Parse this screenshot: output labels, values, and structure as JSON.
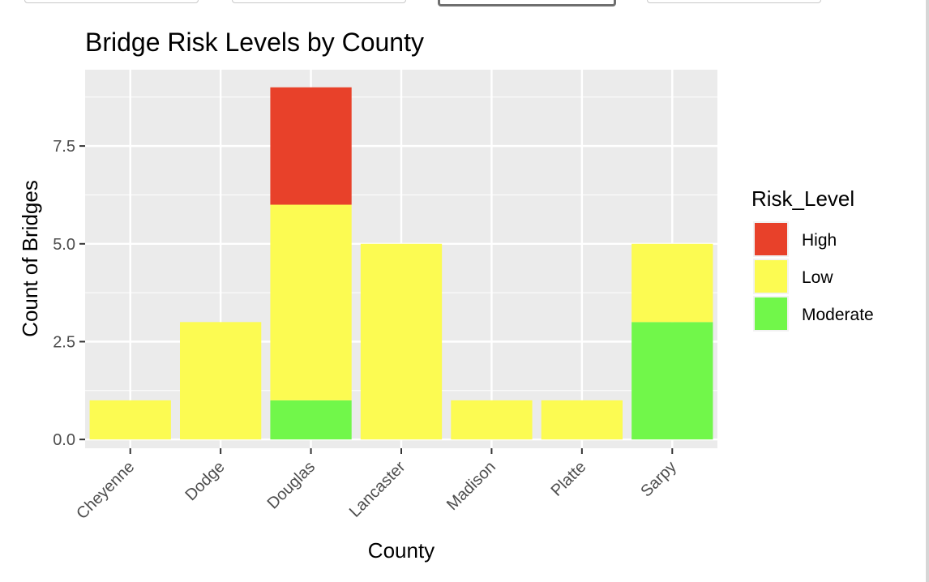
{
  "top_controls": [
    {
      "label": ""
    },
    {
      "label": ""
    },
    {
      "label": ""
    },
    {
      "label": ""
    }
  ],
  "chart_data": {
    "type": "bar",
    "stacked": true,
    "title": "Bridge Risk Levels by County",
    "xlabel": "County",
    "ylabel": "Count of Bridges",
    "categories": [
      "Cheyenne",
      "Dodge",
      "Douglas",
      "Lancaster",
      "Madison",
      "Platte",
      "Sarpy"
    ],
    "series": [
      {
        "name": "High",
        "color": "#E8412A",
        "values": [
          0,
          0,
          3,
          0,
          0,
          0,
          0
        ]
      },
      {
        "name": "Low",
        "color": "#FCFB52",
        "values": [
          1,
          3,
          5,
          5,
          1,
          1,
          2
        ]
      },
      {
        "name": "Moderate",
        "color": "#71F74A",
        "values": [
          0,
          0,
          1,
          0,
          0,
          0,
          3
        ]
      }
    ],
    "stack_order": [
      "Moderate",
      "Low",
      "High"
    ],
    "ylim": [
      -0.225,
      9.45
    ],
    "yticks": [
      0,
      2.5,
      5,
      7.5
    ],
    "ytick_labels": [
      "0.0",
      "2.5",
      "5.0",
      "7.5"
    ],
    "grid": true,
    "legend": {
      "title": "Risk_Level",
      "position": "right"
    },
    "panel_background": "#EBEBEB"
  }
}
